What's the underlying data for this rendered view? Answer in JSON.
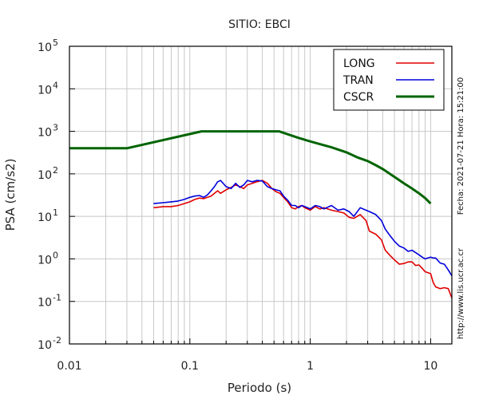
{
  "chart_data": {
    "type": "line",
    "title": "SITIO: EBCI",
    "xlabel": "Periodo (s)",
    "ylabel": "PSA (cm/s2)",
    "xscale": "log",
    "yscale": "log",
    "xlim": [
      0.01,
      15
    ],
    "ylim": [
      0.01,
      100000
    ],
    "xticks": [
      {
        "value": 0.01,
        "label": "0.01"
      },
      {
        "value": 0.1,
        "label": "0.1"
      },
      {
        "value": 1,
        "label": "1"
      },
      {
        "value": 10,
        "label": "10"
      }
    ],
    "yticks": [
      {
        "value": 0.01,
        "base": "10",
        "exp": "-2"
      },
      {
        "value": 0.1,
        "base": "10",
        "exp": "-1"
      },
      {
        "value": 1,
        "base": "10",
        "exp": "0"
      },
      {
        "value": 10,
        "base": "10",
        "exp": "1"
      },
      {
        "value": 100,
        "base": "10",
        "exp": "2"
      },
      {
        "value": 1000,
        "base": "10",
        "exp": "3"
      },
      {
        "value": 10000,
        "base": "10",
        "exp": "4"
      },
      {
        "value": 100000,
        "base": "10",
        "exp": "5"
      }
    ],
    "grid": true,
    "legend_position": "top-right",
    "series": [
      {
        "name": "LONG",
        "color": "#e00000",
        "points": [
          [
            0.05,
            16
          ],
          [
            0.06,
            17
          ],
          [
            0.07,
            17
          ],
          [
            0.08,
            18
          ],
          [
            0.09,
            20
          ],
          [
            0.1,
            22
          ],
          [
            0.11,
            25
          ],
          [
            0.12,
            27
          ],
          [
            0.13,
            26
          ],
          [
            0.14,
            28
          ],
          [
            0.15,
            30
          ],
          [
            0.16,
            35
          ],
          [
            0.17,
            40
          ],
          [
            0.18,
            35
          ],
          [
            0.2,
            42
          ],
          [
            0.22,
            48
          ],
          [
            0.24,
            55
          ],
          [
            0.26,
            50
          ],
          [
            0.28,
            45
          ],
          [
            0.3,
            55
          ],
          [
            0.33,
            60
          ],
          [
            0.36,
            65
          ],
          [
            0.4,
            70
          ],
          [
            0.44,
            60
          ],
          [
            0.48,
            45
          ],
          [
            0.52,
            38
          ],
          [
            0.56,
            35
          ],
          [
            0.6,
            28
          ],
          [
            0.65,
            22
          ],
          [
            0.7,
            16
          ],
          [
            0.75,
            15
          ],
          [
            0.8,
            17
          ],
          [
            0.85,
            18
          ],
          [
            0.9,
            16
          ],
          [
            1.0,
            14
          ],
          [
            1.1,
            17
          ],
          [
            1.2,
            15
          ],
          [
            1.3,
            16
          ],
          [
            1.5,
            14
          ],
          [
            1.7,
            13
          ],
          [
            1.9,
            12
          ],
          [
            2.1,
            9.5
          ],
          [
            2.3,
            9
          ],
          [
            2.6,
            11
          ],
          [
            2.9,
            8
          ],
          [
            3.1,
            4.5
          ],
          [
            3.5,
            3.8
          ],
          [
            3.9,
            2.8
          ],
          [
            4.2,
            1.6
          ],
          [
            4.6,
            1.2
          ],
          [
            5.0,
            0.95
          ],
          [
            5.5,
            0.75
          ],
          [
            6.0,
            0.78
          ],
          [
            6.5,
            0.85
          ],
          [
            7.0,
            0.85
          ],
          [
            7.5,
            0.7
          ],
          [
            8.0,
            0.72
          ],
          [
            8.5,
            0.6
          ],
          [
            9.0,
            0.5
          ],
          [
            10.0,
            0.45
          ],
          [
            10.5,
            0.28
          ],
          [
            11.0,
            0.22
          ],
          [
            12.0,
            0.2
          ],
          [
            13.0,
            0.21
          ],
          [
            14.0,
            0.2
          ],
          [
            15.0,
            0.12
          ]
        ]
      },
      {
        "name": "TRAN",
        "color": "#0000dd",
        "points": [
          [
            0.05,
            20
          ],
          [
            0.06,
            21
          ],
          [
            0.07,
            22
          ],
          [
            0.08,
            23
          ],
          [
            0.09,
            25
          ],
          [
            0.1,
            28
          ],
          [
            0.11,
            30
          ],
          [
            0.12,
            31
          ],
          [
            0.13,
            28
          ],
          [
            0.14,
            32
          ],
          [
            0.15,
            40
          ],
          [
            0.16,
            50
          ],
          [
            0.17,
            65
          ],
          [
            0.18,
            70
          ],
          [
            0.2,
            50
          ],
          [
            0.22,
            45
          ],
          [
            0.24,
            60
          ],
          [
            0.26,
            48
          ],
          [
            0.28,
            55
          ],
          [
            0.3,
            70
          ],
          [
            0.33,
            65
          ],
          [
            0.36,
            70
          ],
          [
            0.4,
            68
          ],
          [
            0.44,
            50
          ],
          [
            0.48,
            45
          ],
          [
            0.52,
            42
          ],
          [
            0.56,
            40
          ],
          [
            0.6,
            30
          ],
          [
            0.65,
            24
          ],
          [
            0.7,
            18
          ],
          [
            0.75,
            18
          ],
          [
            0.8,
            16
          ],
          [
            0.85,
            18
          ],
          [
            0.9,
            17
          ],
          [
            1.0,
            15
          ],
          [
            1.1,
            18
          ],
          [
            1.2,
            17
          ],
          [
            1.3,
            15
          ],
          [
            1.5,
            18
          ],
          [
            1.7,
            14
          ],
          [
            1.9,
            15
          ],
          [
            2.1,
            13
          ],
          [
            2.3,
            10
          ],
          [
            2.6,
            16
          ],
          [
            2.9,
            14
          ],
          [
            3.1,
            13
          ],
          [
            3.5,
            11
          ],
          [
            3.9,
            8
          ],
          [
            4.2,
            5
          ],
          [
            4.6,
            3.5
          ],
          [
            5.0,
            2.6
          ],
          [
            5.5,
            2.0
          ],
          [
            6.0,
            1.8
          ],
          [
            6.5,
            1.5
          ],
          [
            7.0,
            1.6
          ],
          [
            7.5,
            1.4
          ],
          [
            8.0,
            1.25
          ],
          [
            8.5,
            1.1
          ],
          [
            9.0,
            1.0
          ],
          [
            10.0,
            1.1
          ],
          [
            10.5,
            1.05
          ],
          [
            11.0,
            1.05
          ],
          [
            12.0,
            0.8
          ],
          [
            13.0,
            0.75
          ],
          [
            14.0,
            0.55
          ],
          [
            15.0,
            0.4
          ]
        ]
      },
      {
        "name": "CSCR",
        "color": "#006400",
        "points": [
          [
            0.01,
            400
          ],
          [
            0.03,
            400
          ],
          [
            0.125,
            1000
          ],
          [
            0.55,
            1000
          ],
          [
            0.8,
            700
          ],
          [
            1.0,
            580
          ],
          [
            1.2,
            500
          ],
          [
            1.5,
            420
          ],
          [
            2.0,
            320
          ],
          [
            2.5,
            240
          ],
          [
            3.0,
            200
          ],
          [
            3.5,
            160
          ],
          [
            4.0,
            130
          ],
          [
            5.0,
            85
          ],
          [
            6.0,
            60
          ],
          [
            7.0,
            45
          ],
          [
            8.0,
            35
          ],
          [
            9.0,
            27
          ],
          [
            10.0,
            20
          ]
        ]
      }
    ],
    "side_annotations": {
      "date": "Fecha: 2021-07-21 Hora: 15:21:00",
      "url": "http://www.lis.ucr.ac.cr"
    }
  }
}
